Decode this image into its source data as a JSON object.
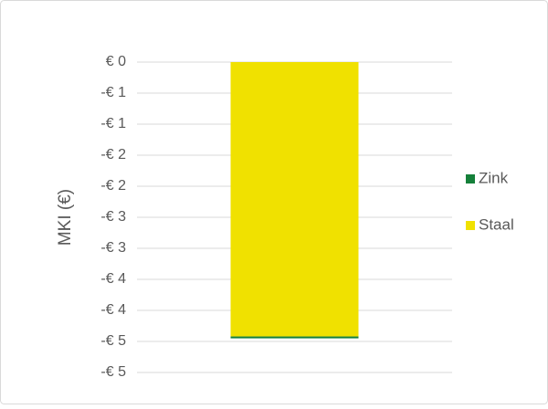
{
  "chart_data": {
    "type": "stacked_bar",
    "y_axis_label": "MKI (€)",
    "categories": [
      null
    ],
    "series": [
      {
        "name": "Staal",
        "color": "#f0e100",
        "values": [
          -4.42
        ]
      },
      {
        "name": "Zink",
        "color": "#15803a",
        "values": [
          -0.03
        ]
      }
    ],
    "ylim": [
      -5,
      0
    ],
    "yticks": [
      {
        "value": 0,
        "label": "€ 0"
      },
      {
        "value": -0.5,
        "label": "-€ 1"
      },
      {
        "value": -1,
        "label": "-€ 1"
      },
      {
        "value": -1.5,
        "label": "-€ 2"
      },
      {
        "value": -2,
        "label": "-€ 2"
      },
      {
        "value": -2.5,
        "label": "-€ 3"
      },
      {
        "value": -3,
        "label": "-€ 3"
      },
      {
        "value": -3.5,
        "label": "-€ 4"
      },
      {
        "value": -4,
        "label": "-€ 4"
      },
      {
        "value": -4.5,
        "label": "-€ 5"
      },
      {
        "value": -5,
        "label": "-€ 5"
      }
    ],
    "grid": true,
    "legend": "right"
  }
}
